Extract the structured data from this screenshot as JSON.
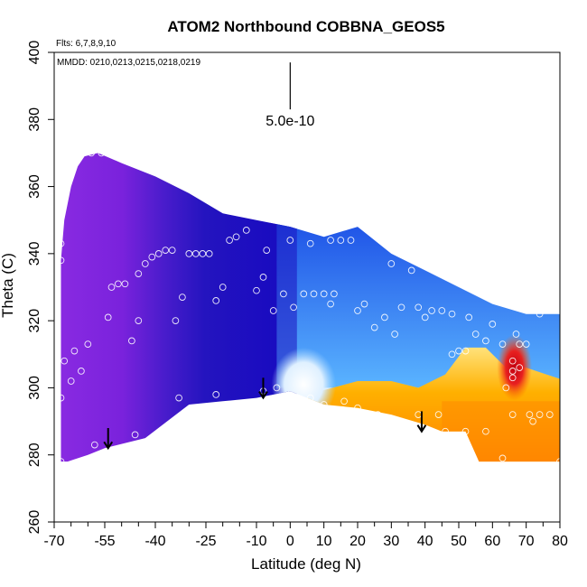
{
  "chart_data": {
    "type": "heatmap",
    "title": "ATOM2 Northbound COBBNA_GEOS5",
    "flights_note": "Flts: 6,7,8,9,10",
    "dates_note": "MMDD: 0210,0213,0215,0218,0219",
    "xlabel": "Latitude (deg N)",
    "ylabel": "Theta (C)",
    "xlim": [
      -70,
      80
    ],
    "ylim": [
      260,
      400
    ],
    "x_ticks": [
      -70,
      -55,
      -40,
      -25,
      -10,
      0,
      10,
      20,
      30,
      40,
      50,
      60,
      70,
      80
    ],
    "x_tick_labels": [
      "-70",
      "-55",
      "-40",
      "-25",
      "-10",
      "0",
      "10",
      "20",
      "30",
      "40",
      "50",
      "60",
      "70",
      "80"
    ],
    "x_minor_ticks": [
      -65,
      -60,
      -50,
      -45,
      -35,
      -30,
      -20,
      -15,
      -5,
      5,
      15,
      25,
      35,
      45,
      55,
      65,
      75
    ],
    "y_ticks": [
      260,
      280,
      300,
      320,
      340,
      360,
      380,
      400
    ],
    "y_tick_labels": [
      "260",
      "280",
      "300",
      "320",
      "340",
      "360",
      "380",
      "400"
    ],
    "scale_bar_label": "5.0e-10",
    "scale_bar_x": 0,
    "scale_bar_y": [
      383,
      397
    ],
    "colors": {
      "purple": "#8a2be2",
      "dark_blue": "#1c10c0",
      "light_blue": "#5ab4ff",
      "white": "#f6f8ff",
      "yellow": "#ffd84a",
      "orange": "#ff8a00",
      "red": "#d40010"
    },
    "field_top_boundary": [
      [
        -68,
        338
      ],
      [
        -67,
        350
      ],
      [
        -65,
        360
      ],
      [
        -63,
        366
      ],
      [
        -61,
        369
      ],
      [
        -57,
        370
      ],
      [
        -50,
        367
      ],
      [
        -40,
        363
      ],
      [
        -30,
        358
      ],
      [
        -20,
        352
      ],
      [
        -10,
        350
      ],
      [
        0,
        348
      ],
      [
        10,
        345
      ],
      [
        20,
        348
      ],
      [
        30,
        340
      ],
      [
        40,
        335
      ],
      [
        50,
        330
      ],
      [
        60,
        325
      ],
      [
        70,
        322
      ],
      [
        80,
        322
      ]
    ],
    "field_bottom_boundary": [
      [
        80,
        278
      ],
      [
        70,
        278
      ],
      [
        61,
        278
      ],
      [
        56,
        278
      ],
      [
        52,
        287
      ],
      [
        45,
        287
      ],
      [
        40,
        289
      ],
      [
        30,
        292
      ],
      [
        20,
        294
      ],
      [
        10,
        295
      ],
      [
        0,
        299
      ],
      [
        -10,
        297
      ],
      [
        -20,
        296
      ],
      [
        -30,
        295
      ],
      [
        -43,
        285
      ],
      [
        -55,
        282
      ],
      [
        -60,
        280
      ],
      [
        -66,
        278
      ],
      [
        -68,
        278
      ]
    ],
    "color_zones": [
      {
        "name": "purple",
        "x_range": [
          -68,
          -42
        ],
        "theta_range": [
          278,
          370
        ]
      },
      {
        "name": "dark_blue",
        "x_range": [
          -42,
          0
        ],
        "theta_range": [
          296,
          363
        ]
      },
      {
        "name": "light_blue",
        "x_range": [
          -2,
          80
        ],
        "theta_range": [
          300,
          335
        ]
      },
      {
        "name": "white",
        "x_range": [
          -2,
          10
        ],
        "theta_range": [
          296,
          306
        ]
      },
      {
        "name": "yellow",
        "x_range": [
          5,
          40
        ],
        "theta_range": [
          290,
          302
        ]
      },
      {
        "name": "orange",
        "x_range": [
          20,
          80
        ],
        "theta_range": [
          278,
          300
        ]
      },
      {
        "name": "red",
        "x_range": [
          63,
          71
        ],
        "theta_range": [
          300,
          311
        ]
      }
    ],
    "arrows": [
      {
        "x": -54,
        "y_top": 288,
        "y_bottom": 282
      },
      {
        "x": -8,
        "y_top": 303,
        "y_bottom": 297
      },
      {
        "x": 39,
        "y_top": 293,
        "y_bottom": 287
      }
    ],
    "obs_points": [
      {
        "x": -67,
        "y": 359
      },
      {
        "x": -68,
        "y": 343
      },
      {
        "x": -68,
        "y": 338
      },
      {
        "x": -67,
        "y": 308
      },
      {
        "x": -65,
        "y": 302
      },
      {
        "x": -68,
        "y": 297
      },
      {
        "x": -64,
        "y": 311
      },
      {
        "x": -62,
        "y": 305
      },
      {
        "x": -60,
        "y": 313
      },
      {
        "x": -56,
        "y": 370
      },
      {
        "x": -59,
        "y": 370
      },
      {
        "x": -58,
        "y": 283
      },
      {
        "x": -54,
        "y": 321
      },
      {
        "x": -53,
        "y": 330
      },
      {
        "x": -51,
        "y": 331
      },
      {
        "x": -49,
        "y": 331
      },
      {
        "x": -45,
        "y": 334
      },
      {
        "x": -43,
        "y": 337
      },
      {
        "x": -41,
        "y": 339
      },
      {
        "x": -39,
        "y": 340
      },
      {
        "x": -37,
        "y": 341
      },
      {
        "x": -35,
        "y": 341
      },
      {
        "x": -47,
        "y": 314
      },
      {
        "x": -45,
        "y": 320
      },
      {
        "x": -46,
        "y": 286
      },
      {
        "x": -34,
        "y": 320
      },
      {
        "x": -32,
        "y": 327
      },
      {
        "x": -30,
        "y": 340
      },
      {
        "x": -28,
        "y": 340
      },
      {
        "x": -26,
        "y": 340
      },
      {
        "x": -24,
        "y": 340
      },
      {
        "x": -22,
        "y": 326
      },
      {
        "x": -20,
        "y": 330
      },
      {
        "x": -18,
        "y": 344
      },
      {
        "x": -16,
        "y": 345
      },
      {
        "x": -13,
        "y": 347
      },
      {
        "x": -33,
        "y": 297
      },
      {
        "x": -22,
        "y": 298
      },
      {
        "x": -10,
        "y": 329
      },
      {
        "x": -8,
        "y": 333
      },
      {
        "x": -7,
        "y": 341
      },
      {
        "x": -5,
        "y": 323
      },
      {
        "x": -2,
        "y": 328
      },
      {
        "x": 0,
        "y": 344
      },
      {
        "x": 1,
        "y": 324
      },
      {
        "x": 4,
        "y": 328
      },
      {
        "x": 7,
        "y": 328
      },
      {
        "x": 6,
        "y": 343
      },
      {
        "x": 10,
        "y": 328
      },
      {
        "x": 12,
        "y": 325
      },
      {
        "x": 13,
        "y": 328
      },
      {
        "x": 15,
        "y": 344
      },
      {
        "x": 18,
        "y": 344
      },
      {
        "x": 12,
        "y": 344
      },
      {
        "x": 20,
        "y": 323
      },
      {
        "x": 22,
        "y": 325
      },
      {
        "x": 24,
        "y": 347
      },
      {
        "x": 25,
        "y": 318
      },
      {
        "x": 28,
        "y": 321
      },
      {
        "x": 31,
        "y": 316
      },
      {
        "x": 33,
        "y": 324
      },
      {
        "x": 36,
        "y": 335
      },
      {
        "x": 38,
        "y": 324
      },
      {
        "x": 30,
        "y": 337
      },
      {
        "x": 40,
        "y": 321
      },
      {
        "x": 42,
        "y": 323
      },
      {
        "x": 45,
        "y": 323
      },
      {
        "x": 48,
        "y": 322
      },
      {
        "x": 53,
        "y": 321
      },
      {
        "x": 55,
        "y": 316
      },
      {
        "x": 58,
        "y": 314
      },
      {
        "x": 60,
        "y": 319
      },
      {
        "x": 63,
        "y": 313
      },
      {
        "x": 67,
        "y": 316
      },
      {
        "x": 68,
        "y": 313
      },
      {
        "x": 70,
        "y": 313
      },
      {
        "x": 74,
        "y": 322
      },
      {
        "x": 80,
        "y": 323
      },
      {
        "x": 48,
        "y": 310
      },
      {
        "x": 50,
        "y": 311
      },
      {
        "x": 52,
        "y": 311
      },
      {
        "x": 64,
        "y": 300
      },
      {
        "x": 66,
        "y": 303
      },
      {
        "x": 66,
        "y": 308
      },
      {
        "x": 66,
        "y": 305
      },
      {
        "x": 68,
        "y": 306
      },
      {
        "x": 66,
        "y": 292
      },
      {
        "x": 71,
        "y": 292
      },
      {
        "x": 72,
        "y": 290
      },
      {
        "x": 74,
        "y": 292
      },
      {
        "x": 77,
        "y": 292
      },
      {
        "x": 58,
        "y": 287
      },
      {
        "x": 52,
        "y": 287
      },
      {
        "x": 46,
        "y": 287
      },
      {
        "x": 44,
        "y": 292
      },
      {
        "x": 38,
        "y": 292
      },
      {
        "x": 33,
        "y": 290
      },
      {
        "x": 26,
        "y": 292
      },
      {
        "x": 20,
        "y": 294
      },
      {
        "x": 16,
        "y": 296
      },
      {
        "x": 10,
        "y": 295
      },
      {
        "x": 6,
        "y": 297
      },
      {
        "x": -4,
        "y": 300
      },
      {
        "x": -8,
        "y": 299
      },
      {
        "x": 63,
        "y": 279
      },
      {
        "x": 80,
        "y": 278
      },
      {
        "x": -68,
        "y": 278
      }
    ]
  }
}
